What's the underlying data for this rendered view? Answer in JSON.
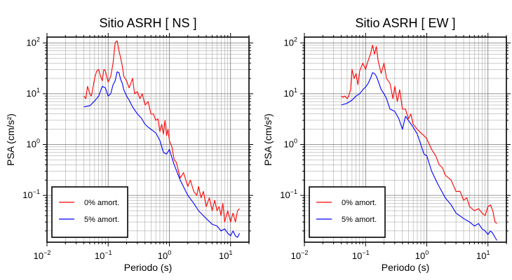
{
  "chart_data": [
    {
      "type": "line",
      "title": "Sitio ASRH [ NS ]",
      "xlabel": "Periodo (s)",
      "ylabel": "PSA (cm/s²)",
      "xscale": "log",
      "yscale": "log",
      "xlim": [
        0.01,
        20
      ],
      "ylim": [
        0.012,
        130
      ],
      "grid": true,
      "legend_position": "bottom-left",
      "x_ticks": [
        {
          "value": 0.01,
          "label": "10",
          "exp": "−2"
        },
        {
          "value": 0.1,
          "label": "10",
          "exp": "−1"
        },
        {
          "value": 1,
          "label": "10",
          "exp": "0"
        },
        {
          "value": 10,
          "label": "10",
          "exp": "1"
        }
      ],
      "y_ticks": [
        {
          "value": 0.1,
          "label": "10",
          "exp": "−1"
        },
        {
          "value": 1,
          "label": "10",
          "exp": "0"
        },
        {
          "value": 10,
          "label": "10",
          "exp": "1"
        },
        {
          "value": 100,
          "label": "10",
          "exp": "2"
        }
      ],
      "series": [
        {
          "name": "0% amort.",
          "color": "#ff0000",
          "x": [
            0.04,
            0.043,
            0.046,
            0.05,
            0.053,
            0.057,
            0.06,
            0.065,
            0.07,
            0.075,
            0.08,
            0.085,
            0.09,
            0.1,
            0.11,
            0.12,
            0.13,
            0.14,
            0.15,
            0.16,
            0.17,
            0.18,
            0.2,
            0.22,
            0.25,
            0.27,
            0.3,
            0.33,
            0.36,
            0.4,
            0.45,
            0.5,
            0.55,
            0.6,
            0.65,
            0.7,
            0.75,
            0.8,
            0.85,
            0.9,
            0.95,
            1.0,
            1.1,
            1.2,
            1.3,
            1.5,
            1.7,
            2.0,
            2.2,
            2.5,
            2.8,
            3.0,
            3.3,
            3.6,
            4.0,
            4.5,
            5.0,
            5.5,
            6.0,
            6.5,
            7.0,
            7.5,
            8.0,
            9.0,
            10.0,
            11.0,
            12.0,
            13.0,
            14.0
          ],
          "values": [
            9,
            8,
            14,
            10,
            9,
            14,
            20,
            28,
            30,
            22,
            18,
            30,
            28,
            17,
            22,
            40,
            100,
            110,
            70,
            50,
            35,
            22,
            18,
            13,
            20,
            10,
            11,
            8,
            10,
            6,
            7,
            4,
            4,
            3,
            3.2,
            1.8,
            2.5,
            1.6,
            3.0,
            1.5,
            2.0,
            1.2,
            0.9,
            0.5,
            0.45,
            0.22,
            0.28,
            0.15,
            0.2,
            0.12,
            0.1,
            0.15,
            0.09,
            0.12,
            0.06,
            0.09,
            0.05,
            0.08,
            0.05,
            0.06,
            0.04,
            0.07,
            0.03,
            0.05,
            0.03,
            0.045,
            0.03,
            0.05,
            0.055
          ]
        },
        {
          "name": "5% amort.",
          "color": "#0000ff",
          "x": [
            0.04,
            0.05,
            0.06,
            0.07,
            0.08,
            0.09,
            0.1,
            0.11,
            0.12,
            0.13,
            0.14,
            0.15,
            0.16,
            0.17,
            0.18,
            0.2,
            0.22,
            0.25,
            0.3,
            0.35,
            0.4,
            0.45,
            0.5,
            0.6,
            0.7,
            0.8,
            0.9,
            1.0,
            1.2,
            1.5,
            2.0,
            2.5,
            3.0,
            4.0,
            5.0,
            6.0,
            7.0,
            8.0,
            9.0,
            10.0,
            11.0,
            12.0,
            13.0,
            14.0
          ],
          "values": [
            5.5,
            5.8,
            7.2,
            9,
            14,
            13,
            9,
            10,
            15,
            18,
            27,
            26,
            19,
            16,
            12,
            9,
            7.5,
            5.5,
            4,
            3.3,
            2.5,
            2.2,
            2,
            1.7,
            1.2,
            0.7,
            0.65,
            0.8,
            0.4,
            0.2,
            0.1,
            0.07,
            0.05,
            0.035,
            0.027,
            0.025,
            0.02,
            0.022,
            0.018,
            0.016,
            0.02,
            0.016,
            0.015,
            0.018
          ]
        }
      ]
    },
    {
      "type": "line",
      "title": "Sitio ASRH [ EW ]",
      "xlabel": "Periodo (s)",
      "ylabel": "PSA (cm/s²)",
      "xscale": "log",
      "yscale": "log",
      "xlim": [
        0.01,
        20
      ],
      "ylim": [
        0.012,
        130
      ],
      "grid": true,
      "legend_position": "bottom-left",
      "x_ticks": [
        {
          "value": 0.01,
          "label": "10",
          "exp": "−2"
        },
        {
          "value": 0.1,
          "label": "10",
          "exp": "−1"
        },
        {
          "value": 1,
          "label": "10",
          "exp": "0"
        },
        {
          "value": 10,
          "label": "10",
          "exp": "1"
        }
      ],
      "y_ticks": [
        {
          "value": 0.1,
          "label": "10",
          "exp": "−1"
        },
        {
          "value": 1,
          "label": "10",
          "exp": "0"
        },
        {
          "value": 10,
          "label": "10",
          "exp": "1"
        },
        {
          "value": 100,
          "label": "10",
          "exp": "2"
        }
      ],
      "series": [
        {
          "name": "0% amort.",
          "color": "#ff0000",
          "x": [
            0.04,
            0.043,
            0.046,
            0.05,
            0.053,
            0.057,
            0.06,
            0.065,
            0.07,
            0.075,
            0.08,
            0.09,
            0.1,
            0.11,
            0.12,
            0.13,
            0.14,
            0.15,
            0.16,
            0.18,
            0.2,
            0.22,
            0.25,
            0.28,
            0.3,
            0.33,
            0.36,
            0.4,
            0.45,
            0.5,
            0.55,
            0.6,
            0.7,
            0.8,
            0.9,
            1.0,
            1.2,
            1.4,
            1.6,
            1.8,
            2.0,
            2.5,
            3.0,
            3.5,
            4.0,
            4.5,
            5.0,
            6.0,
            7.0,
            8.0,
            9.0,
            10.0,
            11.0,
            12.0,
            13.0,
            14.0
          ],
          "values": [
            9,
            8.5,
            9,
            8,
            9,
            12,
            30,
            20,
            25,
            15,
            28,
            40,
            30,
            45,
            60,
            90,
            60,
            85,
            45,
            25,
            40,
            20,
            16,
            8,
            14,
            7,
            12,
            5,
            5,
            3.2,
            4,
            2.5,
            2.0,
            1.7,
            1.5,
            1.3,
            0.8,
            0.6,
            0.4,
            0.35,
            0.25,
            0.2,
            0.12,
            0.12,
            0.08,
            0.09,
            0.06,
            0.05,
            0.055,
            0.045,
            0.04,
            0.06,
            0.065,
            0.05,
            0.03,
            0.028
          ]
        },
        {
          "name": "5% amort.",
          "color": "#0000ff",
          "x": [
            0.04,
            0.05,
            0.06,
            0.07,
            0.08,
            0.09,
            0.1,
            0.11,
            0.12,
            0.13,
            0.14,
            0.15,
            0.16,
            0.18,
            0.2,
            0.22,
            0.25,
            0.3,
            0.35,
            0.4,
            0.45,
            0.5,
            0.6,
            0.7,
            0.8,
            0.9,
            1.0,
            1.2,
            1.5,
            2.0,
            2.5,
            3.0,
            4.0,
            5.0,
            6.0,
            7.0,
            8.0,
            9.0,
            10.0,
            11.0,
            12.0,
            13.0,
            14.0
          ],
          "values": [
            6,
            6.5,
            7.5,
            9,
            10,
            12,
            13.5,
            16,
            20,
            26,
            25,
            22,
            18,
            12,
            10,
            8,
            5,
            4.5,
            3.2,
            2.0,
            3.6,
            3,
            2.2,
            1.6,
            1.0,
            0.65,
            0.6,
            0.3,
            0.17,
            0.09,
            0.065,
            0.045,
            0.035,
            0.03,
            0.025,
            0.028,
            0.022,
            0.02,
            0.017,
            0.02,
            0.018,
            0.015,
            0.013
          ]
        }
      ]
    }
  ]
}
